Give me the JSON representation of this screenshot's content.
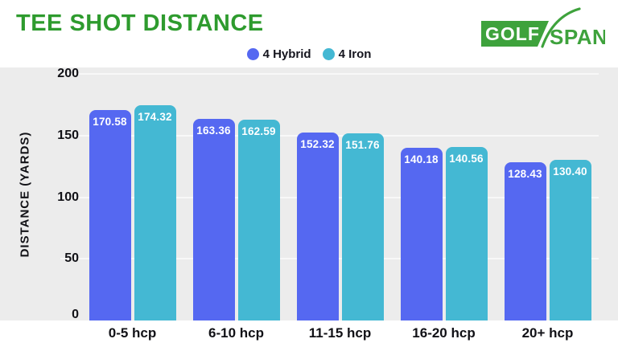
{
  "header": {
    "title": "TEE SHOT DISTANCE",
    "logo": {
      "part1": "GOLF",
      "part2": "SPAN"
    }
  },
  "legend": [
    {
      "label": "4 Hybrid",
      "color": "#5568F1"
    },
    {
      "label": "4 Iron",
      "color": "#44B8D3"
    }
  ],
  "colors": {
    "title_green": "#2E9B2E",
    "logo_green": "#3EA23C",
    "hybrid_blue": "#5568F1",
    "iron_teal": "#44B8D3",
    "plot_background": "#ECECEC",
    "gridline": "#F8F8F8",
    "text": "#15151E"
  },
  "chart_data": {
    "type": "bar",
    "title": "TEE SHOT DISTANCE",
    "categories": [
      "0-5 hcp",
      "6-10 hcp",
      "11-15 hcp",
      "16-20 hcp",
      "20+ hcp"
    ],
    "series": [
      {
        "name": "4 Hybrid",
        "color": "#5568F1",
        "values": [
          170.58,
          163.36,
          152.32,
          140.18,
          128.43
        ]
      },
      {
        "name": "4 Iron",
        "color": "#44B8D3",
        "values": [
          174.32,
          162.59,
          151.76,
          140.56,
          130.4
        ]
      }
    ],
    "xlabel": "",
    "ylabel": "DISTANCE (YARDS)",
    "yticks": [
      0,
      50,
      100,
      150,
      200
    ],
    "ylim": [
      0,
      200
    ],
    "grid": true,
    "legend_position": "top-center",
    "value_labels": "inside-top",
    "value_label_decimals": 2
  }
}
